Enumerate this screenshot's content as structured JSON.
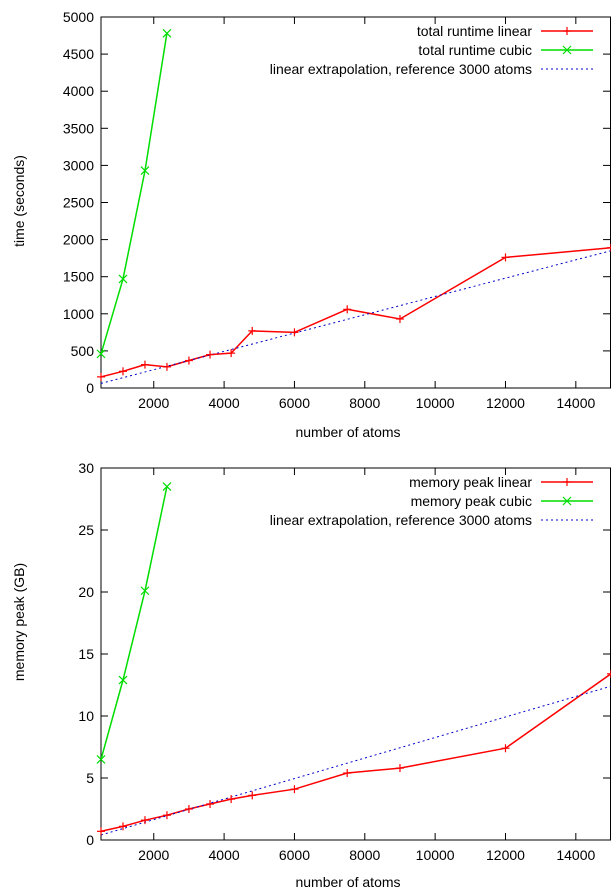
{
  "colors": {
    "linear": "#ff0000",
    "cubic": "#00dd00",
    "extrapolation": "#0000cc",
    "axis": "#000000",
    "background": "#ffffff"
  },
  "chart_data": [
    {
      "type": "line",
      "title": "",
      "xlabel": "number of atoms",
      "ylabel": "time (seconds)",
      "xlim": [
        500,
        15000
      ],
      "ylim": [
        0,
        5000
      ],
      "xticks": [
        2000,
        4000,
        6000,
        8000,
        10000,
        12000,
        14000
      ],
      "yticks": [
        0,
        500,
        1000,
        1500,
        2000,
        2500,
        3000,
        3500,
        4000,
        4500,
        5000
      ],
      "legend_position": "top-right",
      "grid": false,
      "series": [
        {
          "name": "total runtime linear",
          "style": "line-points",
          "marker": "plus",
          "color_key": "linear",
          "x": [
            500,
            1125,
            1750,
            2375,
            3000,
            3600,
            4200,
            4800,
            6000,
            7500,
            9000,
            12000,
            15000
          ],
          "y": [
            150,
            225,
            315,
            285,
            370,
            450,
            470,
            770,
            750,
            1060,
            930,
            1760,
            1890
          ]
        },
        {
          "name": "total runtime cubic",
          "style": "line-points",
          "marker": "cross",
          "color_key": "cubic",
          "x": [
            500,
            1125,
            1750,
            2375
          ],
          "y": [
            460,
            1470,
            2930,
            4780
          ]
        },
        {
          "name": "linear extrapolation, reference 3000 atoms",
          "style": "dotted",
          "marker": "none",
          "color_key": "extrapolation",
          "x": [
            500,
            15000
          ],
          "y": [
            62,
            1850
          ]
        }
      ]
    },
    {
      "type": "line",
      "title": "",
      "xlabel": "number of atoms",
      "ylabel": "memory peak (GB)",
      "xlim": [
        500,
        15000
      ],
      "ylim": [
        0,
        30
      ],
      "xticks": [
        2000,
        4000,
        6000,
        8000,
        10000,
        12000,
        14000
      ],
      "yticks": [
        0,
        5,
        10,
        15,
        20,
        25,
        30
      ],
      "legend_position": "top-right",
      "grid": false,
      "series": [
        {
          "name": "memory peak linear",
          "style": "line-points",
          "marker": "plus",
          "color_key": "linear",
          "x": [
            500,
            1125,
            1750,
            2375,
            3000,
            3600,
            4200,
            4800,
            6000,
            7500,
            9000,
            12000,
            15000
          ],
          "y": [
            0.7,
            1.1,
            1.6,
            2.0,
            2.5,
            2.9,
            3.3,
            3.6,
            4.1,
            5.4,
            5.8,
            7.4,
            13.4
          ]
        },
        {
          "name": "memory peak cubic",
          "style": "line-points",
          "marker": "cross",
          "color_key": "cubic",
          "x": [
            500,
            1125,
            1750,
            2375
          ],
          "y": [
            6.5,
            12.9,
            20.1,
            28.5
          ]
        },
        {
          "name": "linear extrapolation, reference 3000 atoms",
          "style": "dotted",
          "marker": "none",
          "color_key": "extrapolation",
          "x": [
            500,
            15000
          ],
          "y": [
            0.4,
            12.4
          ]
        }
      ]
    }
  ]
}
